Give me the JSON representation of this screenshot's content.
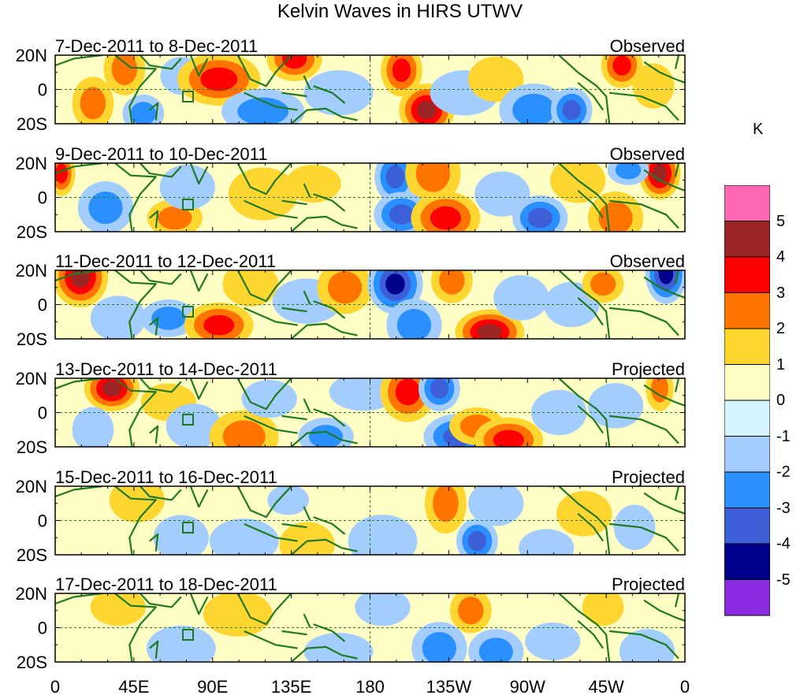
{
  "chart_data": {
    "type": "heatmap",
    "title": "Kelvin Waves in HIRS UTWV",
    "unit": "K",
    "xlabel": "",
    "ylabel": "",
    "x_ticks": [
      "0",
      "45E",
      "90E",
      "135E",
      "180",
      "135W",
      "90W",
      "45W",
      "0"
    ],
    "y_ticks": [
      "20N",
      "0",
      "20S"
    ],
    "colorbar": {
      "labels": [
        "5",
        "4",
        "3",
        "2",
        "1",
        "0",
        "-1",
        "-2",
        "-3",
        "-4",
        "-5"
      ],
      "colors": [
        "#ff69b4",
        "#9b2424",
        "#ff0000",
        "#ff7300",
        "#ffd530",
        "#ffffc5",
        "#d4f5ff",
        "#a3ccff",
        "#2a8fff",
        "#3c5fd8",
        "#00008c",
        "#8a2be2"
      ]
    },
    "panels": [
      {
        "date_range": "7-Dec-2011 to 8-Dec-2011",
        "status": "Observed",
        "blobs": [
          [
            0.06,
            0.7,
            0.03,
            0.35,
            2
          ],
          [
            0.11,
            0.2,
            0.03,
            0.35,
            2
          ],
          [
            0.14,
            0.85,
            0.03,
            0.25,
            -2
          ],
          [
            0.2,
            0.3,
            0.03,
            0.25,
            -1
          ],
          [
            0.26,
            0.35,
            0.06,
            0.35,
            3
          ],
          [
            0.33,
            0.82,
            0.06,
            0.3,
            -2
          ],
          [
            0.38,
            0.05,
            0.04,
            0.3,
            3
          ],
          [
            0.45,
            0.55,
            0.05,
            0.3,
            -1
          ],
          [
            0.55,
            0.22,
            0.03,
            0.35,
            3
          ],
          [
            0.59,
            0.8,
            0.04,
            0.35,
            4
          ],
          [
            0.65,
            0.55,
            0.05,
            0.3,
            -1
          ],
          [
            0.7,
            0.35,
            0.04,
            0.3,
            1
          ],
          [
            0.76,
            0.8,
            0.05,
            0.35,
            -2
          ],
          [
            0.82,
            0.8,
            0.03,
            0.3,
            -3
          ],
          [
            0.9,
            0.15,
            0.03,
            0.3,
            3
          ],
          [
            0.95,
            0.45,
            0.03,
            0.3,
            1
          ]
        ]
      },
      {
        "date_range": "9-Dec-2011 to 10-Dec-2011",
        "status": "Observed",
        "blobs": [
          [
            0.01,
            0.15,
            0.02,
            0.3,
            3
          ],
          [
            0.08,
            0.65,
            0.04,
            0.35,
            -2
          ],
          [
            0.19,
            0.8,
            0.04,
            0.25,
            2
          ],
          [
            0.21,
            0.35,
            0.04,
            0.3,
            -1
          ],
          [
            0.33,
            0.45,
            0.05,
            0.35,
            1
          ],
          [
            0.41,
            0.3,
            0.04,
            0.25,
            1
          ],
          [
            0.54,
            0.2,
            0.03,
            0.35,
            -3
          ],
          [
            0.6,
            0.15,
            0.04,
            0.4,
            2
          ],
          [
            0.55,
            0.75,
            0.04,
            0.3,
            -3
          ],
          [
            0.62,
            0.8,
            0.05,
            0.35,
            3
          ],
          [
            0.71,
            0.45,
            0.04,
            0.3,
            -1
          ],
          [
            0.77,
            0.8,
            0.04,
            0.3,
            -3
          ],
          [
            0.83,
            0.25,
            0.04,
            0.3,
            1
          ],
          [
            0.89,
            0.8,
            0.04,
            0.35,
            2
          ],
          [
            0.96,
            0.15,
            0.03,
            0.35,
            4
          ],
          [
            0.91,
            0.1,
            0.03,
            0.2,
            -2
          ]
        ]
      },
      {
        "date_range": "11-Dec-2011 to 12-Dec-2011",
        "status": "Observed",
        "blobs": [
          [
            0.04,
            0.1,
            0.04,
            0.4,
            4
          ],
          [
            0.1,
            0.7,
            0.04,
            0.3,
            -1
          ],
          [
            0.18,
            0.7,
            0.04,
            0.25,
            -2
          ],
          [
            0.26,
            0.8,
            0.05,
            0.3,
            3
          ],
          [
            0.31,
            0.2,
            0.04,
            0.3,
            1
          ],
          [
            0.4,
            0.45,
            0.05,
            0.3,
            -1
          ],
          [
            0.46,
            0.25,
            0.04,
            0.35,
            2
          ],
          [
            0.54,
            0.2,
            0.04,
            0.4,
            -4
          ],
          [
            0.57,
            0.8,
            0.04,
            0.35,
            -2
          ],
          [
            0.63,
            0.15,
            0.03,
            0.3,
            2
          ],
          [
            0.69,
            0.9,
            0.05,
            0.3,
            4
          ],
          [
            0.74,
            0.4,
            0.04,
            0.3,
            -1
          ],
          [
            0.82,
            0.5,
            0.04,
            0.3,
            -1
          ],
          [
            0.87,
            0.2,
            0.03,
            0.25,
            2
          ],
          [
            0.97,
            0.05,
            0.03,
            0.4,
            -4
          ]
        ]
      },
      {
        "date_range": "13-Dec-2011 to 14-Dec-2011",
        "status": "Projected",
        "blobs": [
          [
            0.09,
            0.15,
            0.04,
            0.3,
            4
          ],
          [
            0.06,
            0.75,
            0.03,
            0.3,
            -1
          ],
          [
            0.18,
            0.35,
            0.04,
            0.25,
            1
          ],
          [
            0.22,
            0.7,
            0.04,
            0.3,
            -1
          ],
          [
            0.3,
            0.85,
            0.05,
            0.35,
            2
          ],
          [
            0.34,
            0.3,
            0.04,
            0.25,
            -1
          ],
          [
            0.43,
            0.85,
            0.04,
            0.25,
            -2
          ],
          [
            0.49,
            0.2,
            0.05,
            0.25,
            -1
          ],
          [
            0.56,
            0.2,
            0.04,
            0.4,
            3
          ],
          [
            0.61,
            0.15,
            0.03,
            0.3,
            -3
          ],
          [
            0.64,
            0.85,
            0.05,
            0.3,
            -3
          ],
          [
            0.67,
            0.7,
            0.04,
            0.25,
            2
          ],
          [
            0.72,
            0.9,
            0.05,
            0.3,
            3
          ],
          [
            0.8,
            0.5,
            0.04,
            0.3,
            -1
          ],
          [
            0.89,
            0.4,
            0.04,
            0.3,
            -1
          ],
          [
            0.96,
            0.15,
            0.02,
            0.3,
            2
          ]
        ]
      },
      {
        "date_range": "15-Dec-2011 to 16-Dec-2011",
        "status": "Projected",
        "blobs": [
          [
            0.13,
            0.2,
            0.04,
            0.3,
            1
          ],
          [
            0.2,
            0.75,
            0.04,
            0.3,
            -1
          ],
          [
            0.3,
            0.8,
            0.05,
            0.3,
            -1
          ],
          [
            0.37,
            0.2,
            0.03,
            0.2,
            -1
          ],
          [
            0.4,
            0.85,
            0.04,
            0.3,
            1
          ],
          [
            0.52,
            0.8,
            0.05,
            0.35,
            -1
          ],
          [
            0.62,
            0.25,
            0.03,
            0.4,
            2
          ],
          [
            0.67,
            0.8,
            0.03,
            0.3,
            -3
          ],
          [
            0.7,
            0.25,
            0.04,
            0.3,
            -1
          ],
          [
            0.78,
            0.9,
            0.04,
            0.25,
            -1
          ],
          [
            0.84,
            0.4,
            0.04,
            0.3,
            1
          ],
          [
            0.92,
            0.6,
            0.03,
            0.3,
            -1
          ]
        ]
      },
      {
        "date_range": "17-Dec-2011 to 18-Dec-2011",
        "status": "Projected",
        "blobs": [
          [
            0.1,
            0.2,
            0.04,
            0.25,
            1
          ],
          [
            0.2,
            0.8,
            0.05,
            0.3,
            -1
          ],
          [
            0.29,
            0.3,
            0.05,
            0.3,
            1
          ],
          [
            0.45,
            0.85,
            0.05,
            0.25,
            -1
          ],
          [
            0.52,
            0.2,
            0.04,
            0.25,
            -1
          ],
          [
            0.61,
            0.8,
            0.04,
            0.35,
            -2
          ],
          [
            0.66,
            0.25,
            0.03,
            0.3,
            2
          ],
          [
            0.7,
            0.85,
            0.04,
            0.3,
            -2
          ],
          [
            0.79,
            0.7,
            0.04,
            0.25,
            -1
          ],
          [
            0.87,
            0.2,
            0.03,
            0.25,
            1
          ],
          [
            0.94,
            0.85,
            0.04,
            0.3,
            -1
          ]
        ]
      }
    ]
  }
}
